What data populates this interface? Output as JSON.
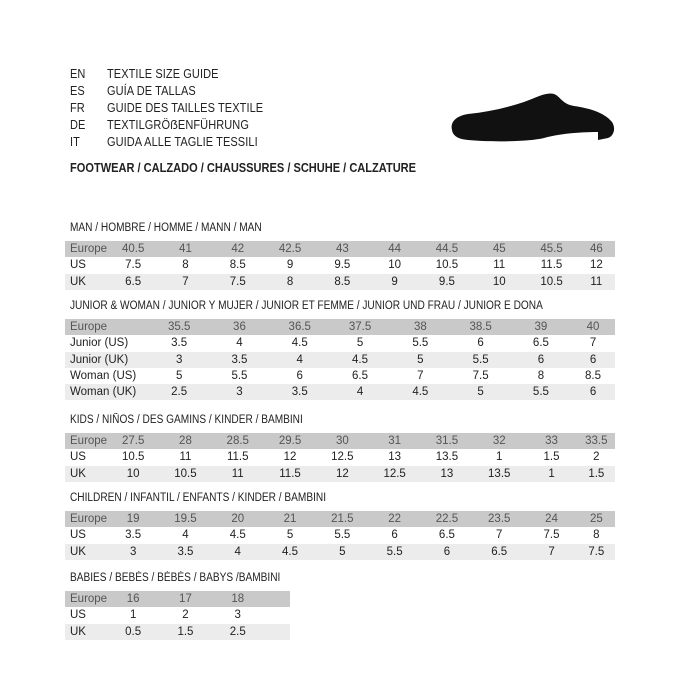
{
  "header": {
    "lines": [
      {
        "code": "EN",
        "text": "TEXTILE SIZE GUIDE"
      },
      {
        "code": "ES",
        "text": "GUÍA DE TALLAS"
      },
      {
        "code": "FR",
        "text": "GUIDE DES TAILLES TEXTILE"
      },
      {
        "code": "DE",
        "text": "TEXTILGRÖẞENFÜHRUNG"
      },
      {
        "code": "IT",
        "text": "GUIDA ALLE TAGLIE TESSILI"
      }
    ],
    "footwear": "FOOTWEAR / CALZADO / CHAUSSURES / SCHUHE / CALZATURE",
    "shoe_icon": "shoe-icon"
  },
  "sections": {
    "man": {
      "title": "MAN / HOMBRE / HOMME / MANN / MAN",
      "rows": [
        [
          "Europe",
          "40.5",
          "41",
          "42",
          "42.5",
          "43",
          "44",
          "44.5",
          "45",
          "45.5",
          "46"
        ],
        [
          "US",
          "7.5",
          "8",
          "8.5",
          "9",
          "9.5",
          "10",
          "10.5",
          "11",
          "11.5",
          "12"
        ],
        [
          "UK",
          "6.5",
          "7",
          "7.5",
          "8",
          "8.5",
          "9",
          "9.5",
          "10",
          "10.5",
          "11"
        ]
      ]
    },
    "junior": {
      "title": "JUNIOR & WOMAN / JUNIOR Y MUJER / JUNIOR ET FEMME / JUNIOR UND FRAU / JUNIOR E DONA",
      "rows": [
        [
          "Europe",
          "35.5",
          "36",
          "36.5",
          "37.5",
          "38",
          "38.5",
          "39",
          "40"
        ],
        [
          "Junior (US)",
          "3.5",
          "4",
          "4.5",
          "5",
          "5.5",
          "6",
          "6.5",
          "7"
        ],
        [
          "Junior (UK)",
          "3",
          "3.5",
          "4",
          "4.5",
          "5",
          "5.5",
          "6",
          "6"
        ],
        [
          "Woman (US)",
          "5",
          "5.5",
          "6",
          "6.5",
          "7",
          "7.5",
          "8",
          "8.5"
        ],
        [
          "Woman (UK)",
          "2.5",
          "3",
          "3.5",
          "4",
          "4.5",
          "5",
          "5.5",
          "6"
        ]
      ]
    },
    "kids": {
      "title": "KIDS / NIÑOS / DES GAMINS / KINDER / BAMBINI",
      "rows": [
        [
          "Europe",
          "27.5",
          "28",
          "28.5",
          "29.5",
          "30",
          "31",
          "31.5",
          "32",
          "33",
          "33.5"
        ],
        [
          "US",
          "10.5",
          "11",
          "11.5",
          "12",
          "12.5",
          "13",
          "13.5",
          "1",
          "1.5",
          "2"
        ],
        [
          "UK",
          "10",
          "10.5",
          "11",
          "11.5",
          "12",
          "12.5",
          "13",
          "13.5",
          "1",
          "1.5"
        ]
      ]
    },
    "children": {
      "title": "CHILDREN / INFANTIL / ENFANTS / KINDER / BAMBINI",
      "rows": [
        [
          "Europe",
          "19",
          "19.5",
          "20",
          "21",
          "21.5",
          "22",
          "22.5",
          "23.5",
          "24",
          "25"
        ],
        [
          "US",
          "3.5",
          "4",
          "4.5",
          "5",
          "5.5",
          "6",
          "6.5",
          "7",
          "7.5",
          "8"
        ],
        [
          "UK",
          "3",
          "3.5",
          "4",
          "4.5",
          "5",
          "5.5",
          "6",
          "6.5",
          "7",
          "7.5"
        ]
      ]
    },
    "babies": {
      "title": "BABIES  / BEBÉS / BÉBÉS / BABYS /BAMBINI",
      "rows": [
        [
          "Europe",
          "16",
          "17",
          "18",
          ""
        ],
        [
          "US",
          "1",
          "2",
          "3",
          ""
        ],
        [
          "UK",
          "0.5",
          "1.5",
          "2.5",
          ""
        ]
      ]
    }
  }
}
